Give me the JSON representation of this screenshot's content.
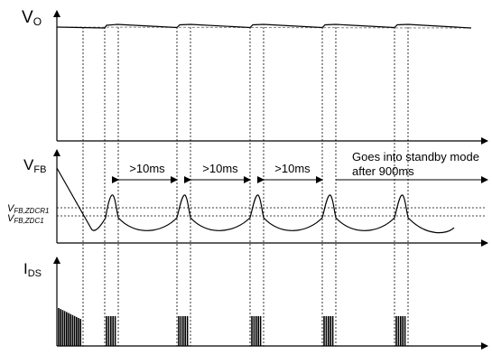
{
  "labels": {
    "vo": {
      "main": "V",
      "sub": "O"
    },
    "vfb": {
      "main": "V",
      "sub": "FB"
    },
    "ids": {
      "main": "I",
      "sub": "DS"
    },
    "zdcr1": {
      "main": "V",
      "sub": "FB,ZDCR1"
    },
    "zdc1": {
      "main": "V",
      "sub": "FB,ZDC1"
    }
  },
  "intervals": [
    ">10ms",
    ">10ms",
    ">10ms"
  ],
  "standby": {
    "line1": "Goes into standby mode",
    "line2": "after 900ms"
  },
  "colors": {
    "ink": "#000000",
    "background": "#ffffff"
  }
}
